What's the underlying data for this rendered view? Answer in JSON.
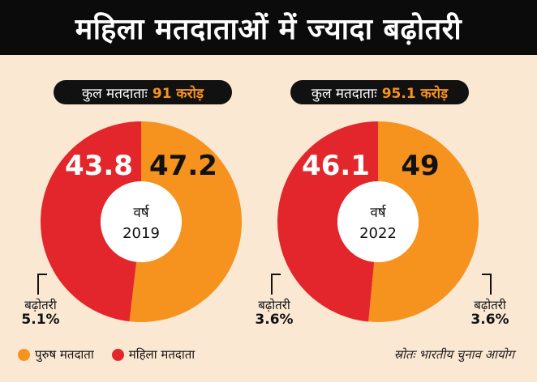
{
  "title": "महिला मतदाताओं में ज्यादा बढ़ोतरी",
  "colors": {
    "male": "#f6921e",
    "female": "#e3262b",
    "background": "#fbe8d3"
  },
  "charts": [
    {
      "total_label": "कुल मतदाताः",
      "total_value": "91 करोड़",
      "center_label": "वर्ष",
      "year": "2019",
      "growth_label": "बढ़ोतरी",
      "growth_value": "5.1%"
    },
    {
      "total_label": "कुल मतदाताः",
      "total_value": "95.1 करोड़",
      "center_label": "वर्ष",
      "year": "2022",
      "growth_label": "बढ़ोतरी",
      "growth_value": "3.6%"
    }
  ],
  "legend": {
    "male": "पुरुष मतदाता",
    "female": "महिला मतदाता"
  },
  "source": "स्रोतः भारतीय चुनाव आयोग",
  "chart_data": [
    {
      "type": "pie",
      "categories": [
        "पुरुष मतदाता",
        "महिला मतदाता"
      ],
      "values": [
        47.2,
        43.8
      ],
      "labels": [
        "47.2",
        "43.8"
      ],
      "legend": "bottom-left"
    },
    {
      "type": "pie",
      "categories": [
        "पुरुष मतदाता",
        "महिला मतदाता"
      ],
      "values": [
        49,
        46.1
      ],
      "labels": [
        "49",
        "46.1"
      ],
      "legend": "bottom-left"
    }
  ]
}
